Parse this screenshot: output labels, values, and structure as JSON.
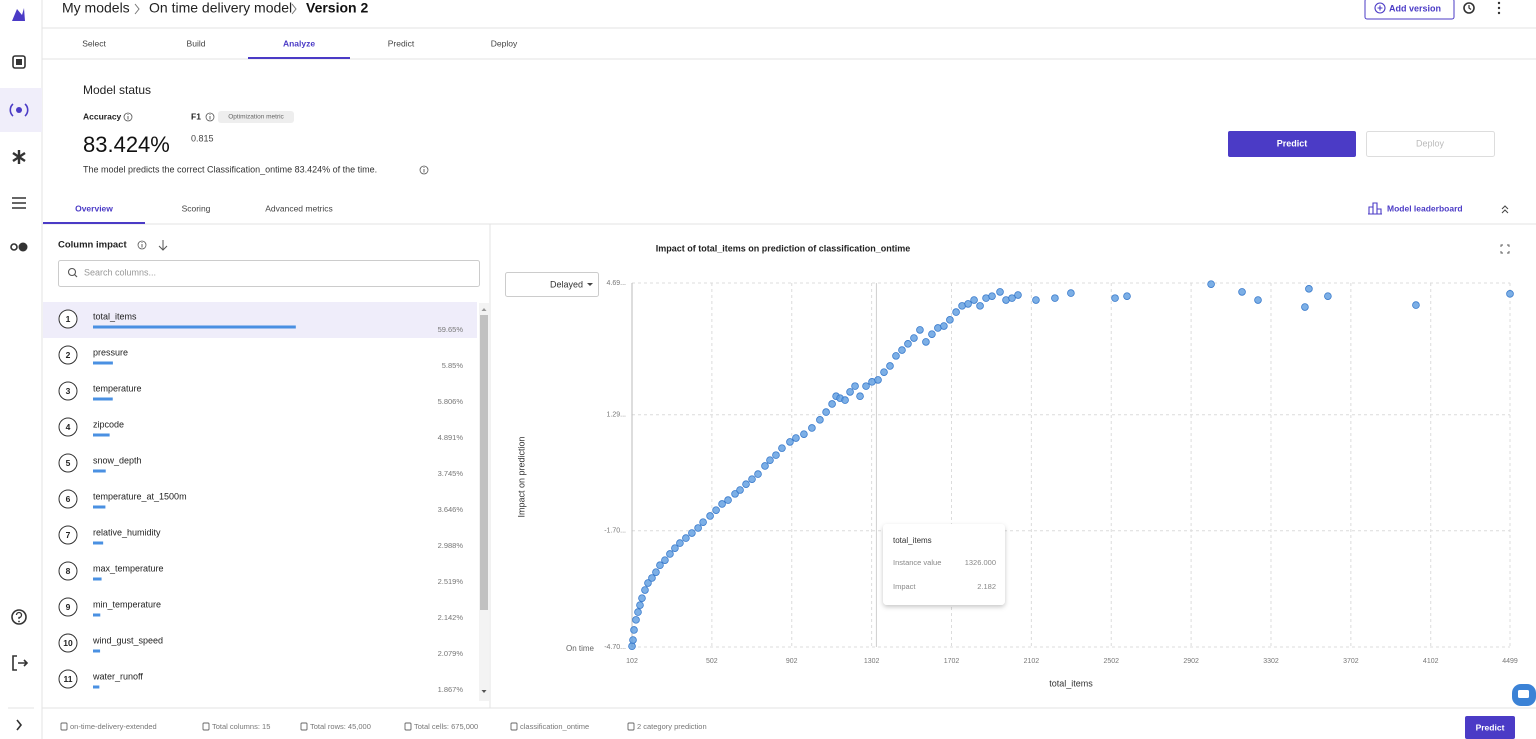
{
  "header": {
    "breadcrumb": [
      "My models",
      "On time delivery model",
      "Version 2"
    ],
    "add_version": "Add version"
  },
  "tabs": [
    "Select",
    "Build",
    "Analyze",
    "Predict",
    "Deploy"
  ],
  "model_status": {
    "title": "Model status",
    "accuracy_label": "Accuracy",
    "f1_label": "F1",
    "optimization_chip": "Optimization metric",
    "accuracy": "83.424%",
    "f1": 0.815,
    "description": "The model predicts the correct Classification_ontime 83.424% of the time."
  },
  "actions": {
    "predict": "Predict",
    "deploy": "Deploy"
  },
  "subtabs": [
    "Overview",
    "Scoring",
    "Advanced metrics"
  ],
  "leaderboard": "Model leaderboard",
  "column_impact": {
    "title": "Column impact",
    "search_placeholder": "Search columns...",
    "items": [
      {
        "rank": 1,
        "name": "total_items",
        "value": 59.65,
        "label": "59.65%"
      },
      {
        "rank": 2,
        "name": "pressure",
        "value": 5.85,
        "label": "5.85%"
      },
      {
        "rank": 3,
        "name": "temperature",
        "value": 5.806,
        "label": "5.806%"
      },
      {
        "rank": 4,
        "name": "zipcode",
        "value": 4.891,
        "label": "4.891%"
      },
      {
        "rank": 5,
        "name": "snow_depth",
        "value": 3.745,
        "label": "3.745%"
      },
      {
        "rank": 6,
        "name": "temperature_at_1500m",
        "value": 3.646,
        "label": "3.646%"
      },
      {
        "rank": 7,
        "name": "relative_humidity",
        "value": 2.988,
        "label": "2.988%"
      },
      {
        "rank": 8,
        "name": "max_temperature",
        "value": 2.519,
        "label": "2.519%"
      },
      {
        "rank": 9,
        "name": "min_temperature",
        "value": 2.142,
        "label": "2.142%"
      },
      {
        "rank": 10,
        "name": "wind_gust_speed",
        "value": 2.079,
        "label": "2.079%"
      },
      {
        "rank": 11,
        "name": "water_runoff",
        "value": 1.867,
        "label": "1.867%"
      }
    ]
  },
  "chart_data": {
    "type": "scatter",
    "title": "Impact of total_items on prediction of classification_ontime",
    "x_label": "total_items",
    "y_label": "Impact on prediction",
    "class_selector": "Delayed",
    "baseline_label": "On time",
    "color": "#5b9be0",
    "grid": true,
    "xlim": [
      102,
      4499
    ],
    "xticks": [
      102,
      502,
      902,
      1302,
      1702,
      2102,
      2502,
      2902,
      3302,
      3702,
      4102,
      4499
    ],
    "ylim": [
      -4.7,
      4.69
    ],
    "yticks": [
      {
        "value": -4.7,
        "label": "-4.70..."
      },
      {
        "value": -1.7,
        "label": "-1.70..."
      },
      {
        "value": 1.29,
        "label": "1.29..."
      },
      {
        "value": 4.69,
        "label": "4.69..."
      }
    ],
    "x": [
      102,
      107,
      112,
      122,
      132,
      142,
      152,
      167,
      182,
      202,
      222,
      242,
      267,
      292,
      317,
      342,
      372,
      402,
      433,
      458,
      493,
      523,
      553,
      583,
      618,
      643,
      673,
      703,
      733,
      768,
      793,
      823,
      853,
      893,
      923,
      963,
      1003,
      1043,
      1074,
      1104,
      1124,
      1144,
      1169,
      1194,
      1219,
      1244,
      1274,
      1304,
      1334,
      1364,
      1394,
      1424,
      1454,
      1484,
      1514,
      1544,
      1574,
      1604,
      1634,
      1664,
      1694,
      1725,
      1755,
      1785,
      1815,
      1845,
      1875,
      1905,
      1945,
      1975,
      2005,
      2035,
      2125,
      2220,
      2300,
      2521,
      2581,
      3002,
      3157,
      3237,
      3472,
      3492,
      3587,
      4028,
      4499
    ],
    "values": [
      -4.68,
      -4.52,
      -4.26,
      -4.0,
      -3.8,
      -3.62,
      -3.44,
      -3.23,
      -3.05,
      -2.92,
      -2.77,
      -2.59,
      -2.46,
      -2.3,
      -2.15,
      -2.02,
      -1.89,
      -1.76,
      -1.63,
      -1.48,
      -1.32,
      -1.17,
      -1.01,
      -0.91,
      -0.75,
      -0.65,
      -0.5,
      -0.37,
      -0.24,
      -0.03,
      0.12,
      0.25,
      0.43,
      0.59,
      0.69,
      0.79,
      0.95,
      1.16,
      1.36,
      1.57,
      1.77,
      1.72,
      1.67,
      1.88,
      2.03,
      1.77,
      2.03,
      2.14,
      2.19,
      2.39,
      2.55,
      2.81,
      2.96,
      3.12,
      3.27,
      3.48,
      3.17,
      3.37,
      3.53,
      3.58,
      3.74,
      3.94,
      4.1,
      4.15,
      4.25,
      4.1,
      4.3,
      4.35,
      4.46,
      4.25,
      4.3,
      4.38,
      4.25,
      4.3,
      4.43,
      4.3,
      4.35,
      4.66,
      4.46,
      4.25,
      4.07,
      4.54,
      4.35,
      4.12,
      4.41
    ],
    "tooltip": {
      "title": "total_items",
      "instance_label": "Instance value",
      "instance_value": {
        "value": 1326,
        "label": "1326.000"
      },
      "impact_label": "Impact",
      "impact_value": 2.182
    }
  },
  "footer": {
    "items": [
      "on-time-delivery-extended",
      "Total columns: 15",
      "Total rows: 45,000",
      "Total cells: 675,000",
      "classification_ontime",
      "2 category prediction"
    ],
    "predict": "Predict"
  }
}
